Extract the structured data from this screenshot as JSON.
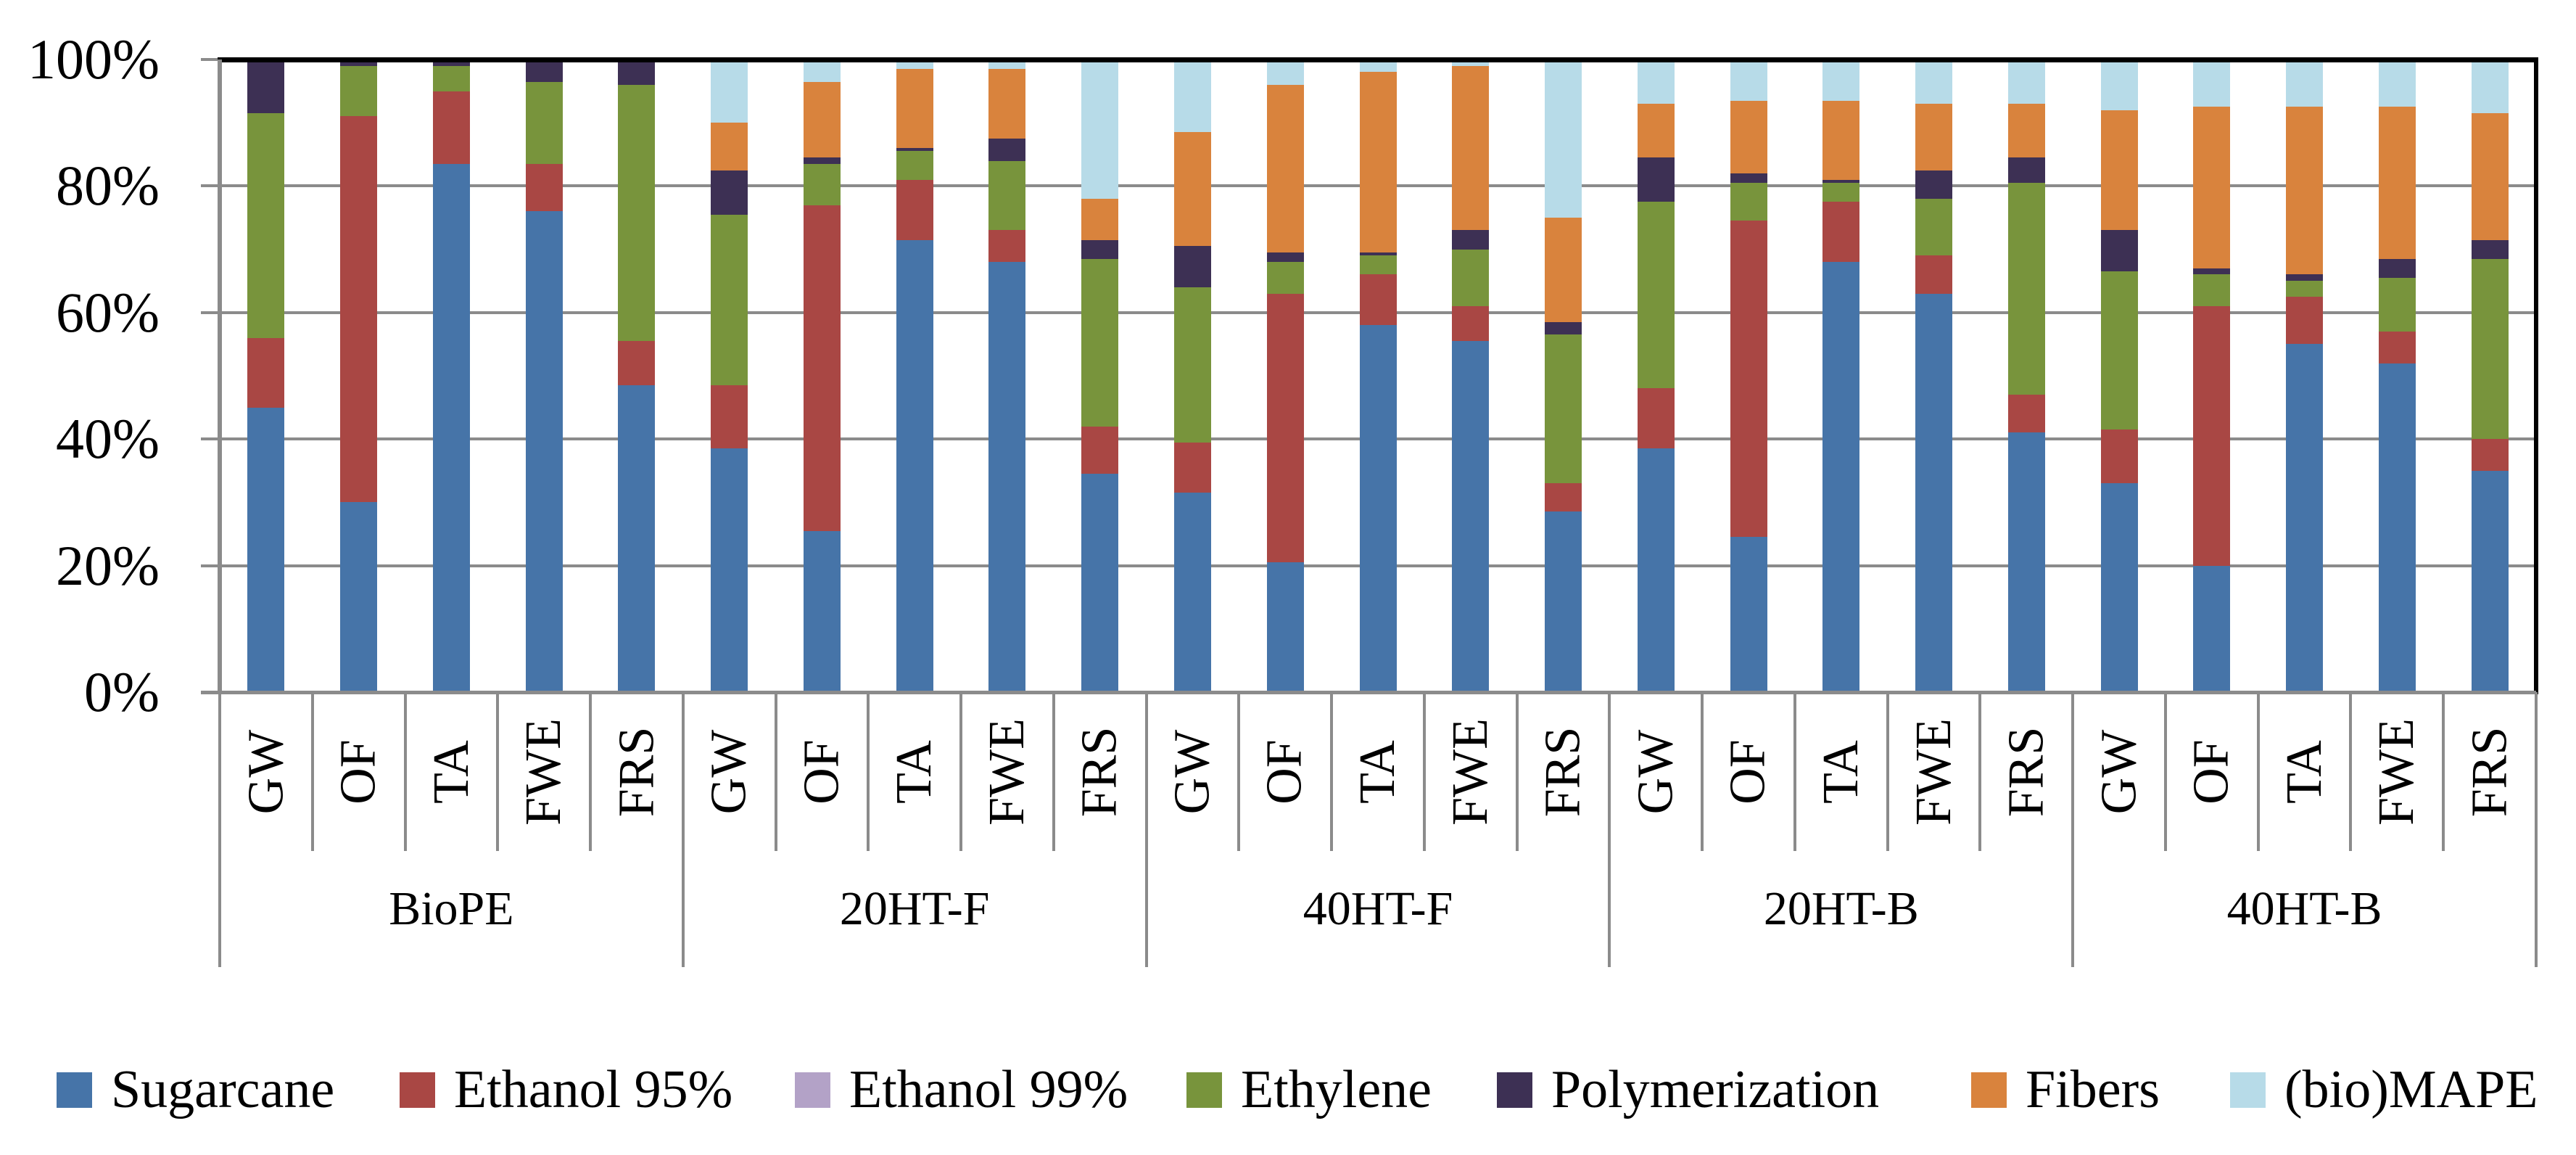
{
  "chart_data": {
    "type": "bar",
    "subtype": "stacked-100-percent",
    "title": "",
    "xlabel": "",
    "ylabel": "",
    "legend_position": "bottom",
    "grid": true,
    "y_axis": {
      "min": 0,
      "max": 100,
      "tick_step": 20,
      "tick_labels": [
        "0%",
        "20%",
        "40%",
        "60%",
        "80%",
        "100%"
      ]
    },
    "categories": [
      "GW",
      "OF",
      "TA",
      "FWE",
      "FRS"
    ],
    "groups": [
      "BioPE",
      "20HT-F",
      "40HT-F",
      "20HT-B",
      "40HT-B"
    ],
    "series": [
      {
        "name": "Sugarcane",
        "color": "#4674A8",
        "values": [
          [
            45,
            30,
            83.5,
            76,
            48.5
          ],
          [
            38.5,
            25.5,
            71.5,
            68,
            34.5
          ],
          [
            31.5,
            20.5,
            58,
            55.5,
            28.5
          ],
          [
            38.5,
            24.5,
            68,
            63,
            41
          ],
          [
            33,
            20,
            55,
            52,
            35
          ]
        ]
      },
      {
        "name": "Ethanol 95%",
        "color": "#A94744",
        "values": [
          [
            11,
            61,
            11.5,
            7.5,
            7
          ],
          [
            10,
            51.5,
            9.5,
            5,
            7.5
          ],
          [
            8,
            42.5,
            8,
            5.5,
            4.5
          ],
          [
            9.5,
            50,
            9.5,
            6,
            6
          ],
          [
            8.5,
            41,
            7.5,
            5,
            5
          ]
        ]
      },
      {
        "name": "Ethanol 99%",
        "color": "#B3A2C7",
        "values": [
          [
            0,
            0,
            0,
            0,
            0
          ],
          [
            0,
            0,
            0,
            0,
            0
          ],
          [
            0,
            0,
            0,
            0,
            0
          ],
          [
            0,
            0,
            0,
            0,
            0
          ],
          [
            0,
            0,
            0,
            0,
            0
          ]
        ]
      },
      {
        "name": "Ethylene",
        "color": "#78943C",
        "values": [
          [
            35.5,
            8,
            4,
            13,
            40.5
          ],
          [
            27,
            6.5,
            4.5,
            11,
            26.5
          ],
          [
            24.5,
            5,
            3,
            9,
            23.5
          ],
          [
            29.5,
            6,
            3,
            9,
            33.5
          ],
          [
            25,
            5,
            2.5,
            8.5,
            28.5
          ]
        ]
      },
      {
        "name": "Polymerization",
        "color": "#3D3054",
        "values": [
          [
            8.5,
            1,
            1,
            3.5,
            4
          ],
          [
            7,
            1,
            0.5,
            3.5,
            3
          ],
          [
            6.5,
            1.5,
            0.5,
            3,
            2
          ],
          [
            7,
            1.5,
            0.5,
            4.5,
            4
          ],
          [
            6.5,
            1,
            1,
            3,
            3
          ]
        ]
      },
      {
        "name": "Fibers",
        "color": "#D9833D",
        "values": [
          [
            0,
            0,
            0,
            0,
            0
          ],
          [
            7.5,
            12,
            12.5,
            11,
            6.5
          ],
          [
            18,
            26.5,
            28.5,
            26,
            16.5
          ],
          [
            8.5,
            11.5,
            12.5,
            10.5,
            8.5
          ],
          [
            19,
            25.5,
            26.5,
            24,
            20
          ]
        ]
      },
      {
        "name": "(bio)MAPE",
        "color": "#B7DBE8",
        "values": [
          [
            0,
            0,
            0,
            0,
            0
          ],
          [
            10,
            3.5,
            1.5,
            1.5,
            22
          ],
          [
            11.5,
            4,
            2,
            1,
            25
          ],
          [
            7,
            6.5,
            6.5,
            7,
            7
          ],
          [
            8,
            7.5,
            7.5,
            7.5,
            8.5
          ]
        ]
      }
    ],
    "colors": {
      "gridline": "#8b8b8b",
      "axis": "#8b8b8b",
      "plot_border_top": "#000000",
      "plot_border_right": "#000000",
      "text": "#000000"
    }
  }
}
